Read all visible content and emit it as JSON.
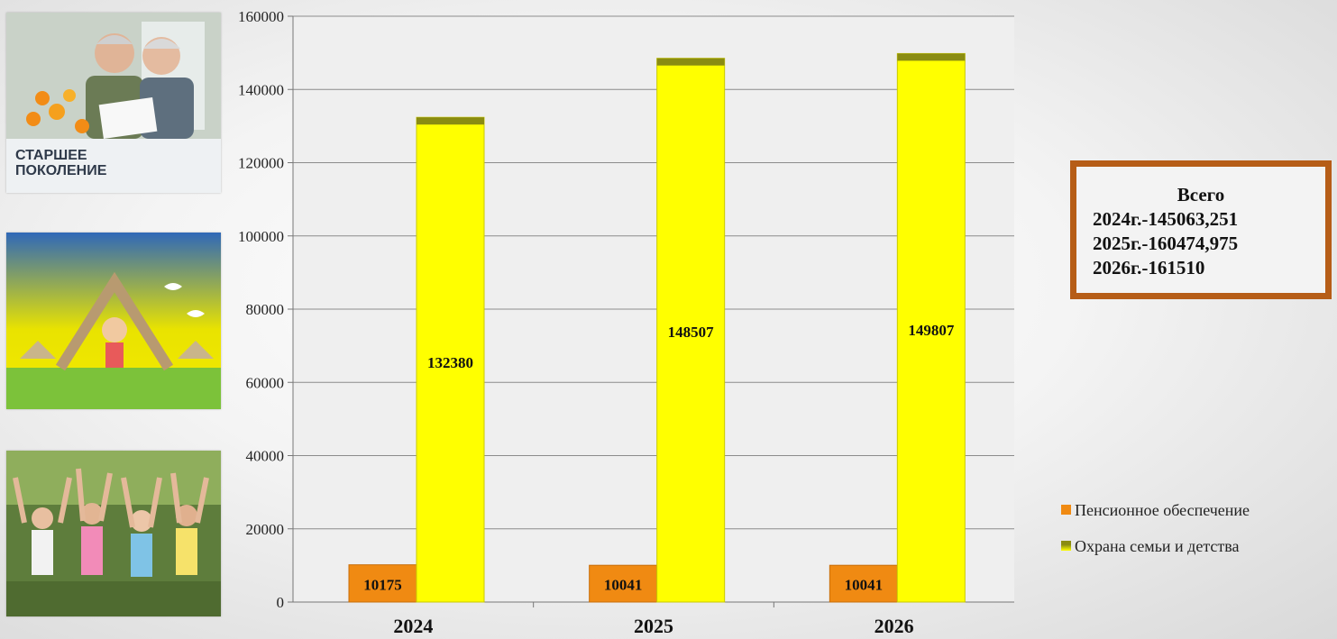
{
  "photos": {
    "elderly_caption": "СТАРШЕЕ\nПОКОЛЕНИЕ"
  },
  "total_box": {
    "title": "Всего",
    "lines": [
      "2024г.-145063,251",
      "2025г.-160474,975",
      "2026г.-161510"
    ]
  },
  "colors": {
    "pension": "#f08a12",
    "family": "#ffff00",
    "family_top": "#8a8c12",
    "box_border": "#b65d17"
  },
  "chart_data": {
    "type": "bar",
    "title": "",
    "xlabel": "",
    "ylabel": "",
    "categories": [
      "2024",
      "2025",
      "2026"
    ],
    "ylim": [
      0,
      160000
    ],
    "yticks": [
      0,
      20000,
      40000,
      60000,
      80000,
      100000,
      120000,
      140000,
      160000
    ],
    "grid": true,
    "legend_position": "right",
    "series": [
      {
        "name": "Пенсионное обеспечение",
        "values": [
          10175,
          10041,
          10041
        ],
        "labels": [
          "10175",
          "10041",
          "10041"
        ]
      },
      {
        "name": "Охрана семьи и детства",
        "values": [
          132380,
          148507,
          149807
        ],
        "labels": [
          "132380",
          "148507",
          "149807"
        ]
      }
    ]
  }
}
